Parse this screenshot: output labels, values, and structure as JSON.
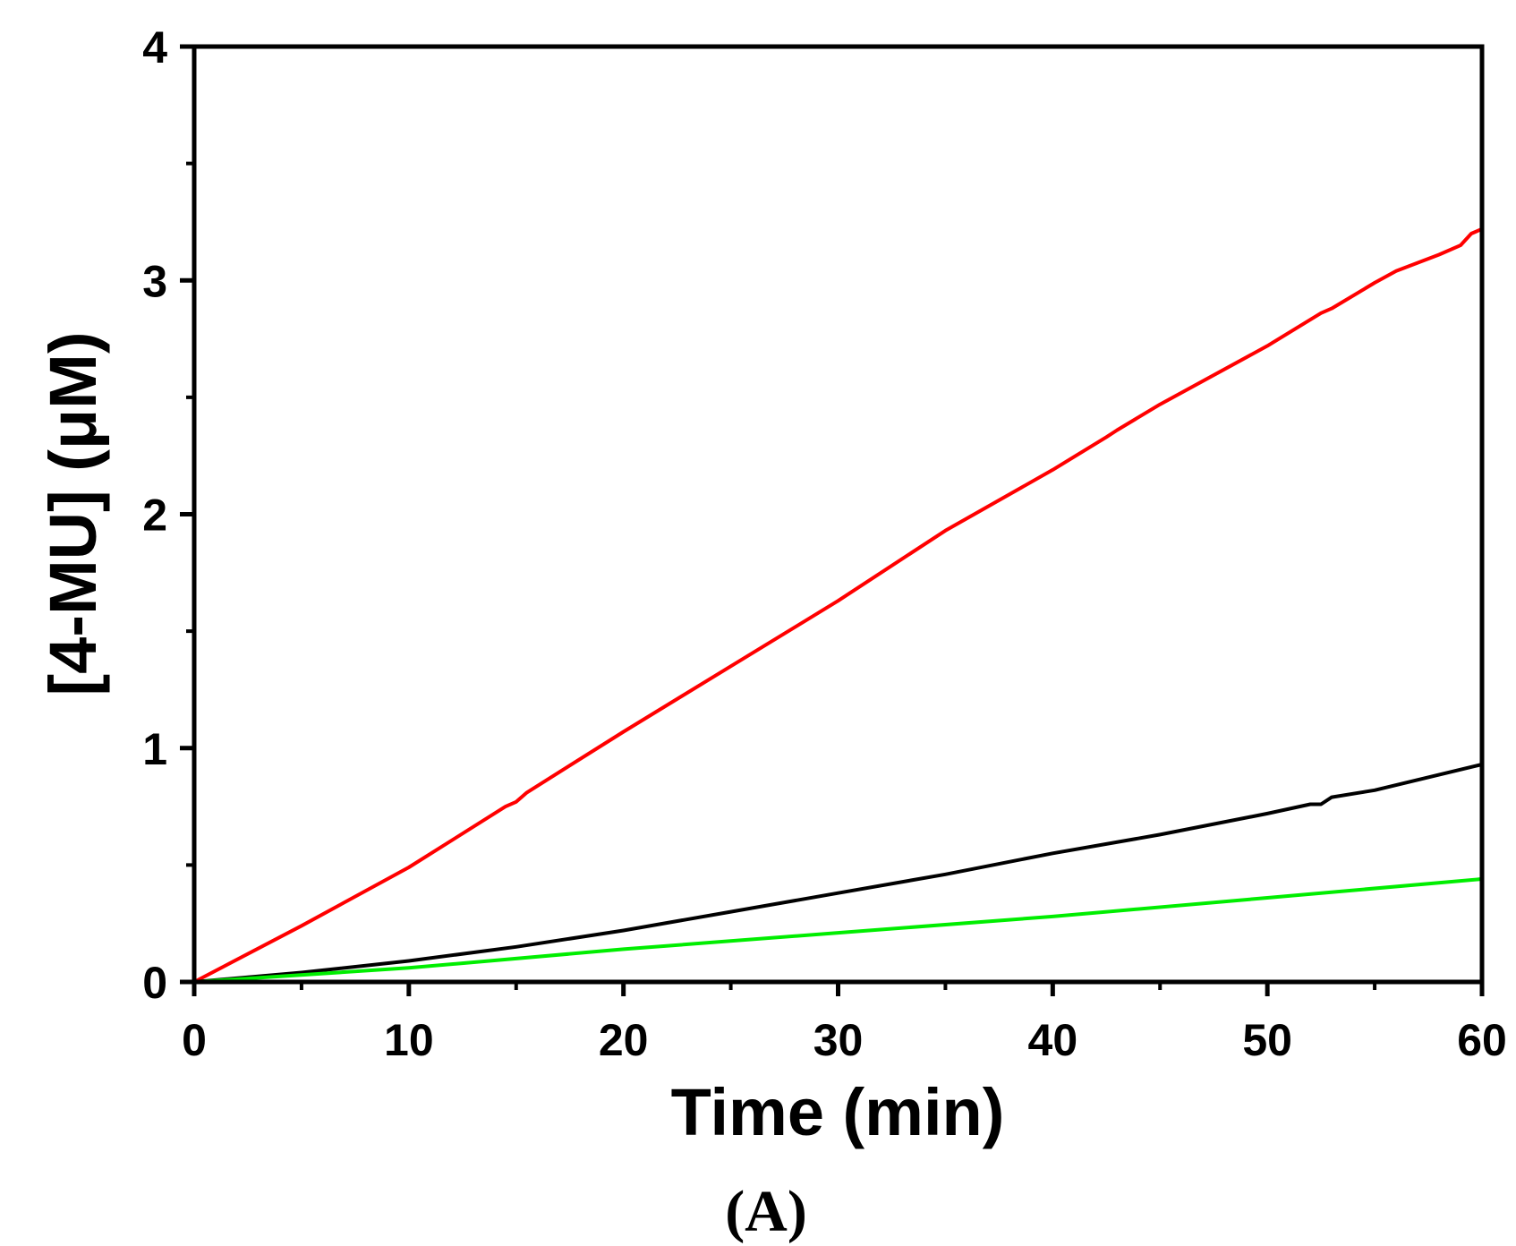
{
  "chart_data": {
    "type": "line",
    "title": "",
    "xlabel": "Time (min)",
    "ylabel": "[4-MU] (μM)",
    "panel_label": "(A)",
    "xlim": [
      0,
      60
    ],
    "ylim": [
      0,
      4
    ],
    "x_ticks": [
      0,
      10,
      20,
      30,
      40,
      50,
      60
    ],
    "y_ticks": [
      0,
      1,
      2,
      3,
      4
    ],
    "grid": false,
    "legend": "none",
    "series": [
      {
        "color": "#ff0000",
        "x": [
          0,
          5,
          10,
          14.5,
          15,
          15.5,
          20,
          25,
          30,
          30.5,
          35,
          40,
          42.5,
          43,
          45,
          50,
          52.5,
          53,
          55,
          56,
          58,
          59,
          59.5,
          60
        ],
        "y": [
          0,
          0.24,
          0.49,
          0.75,
          0.77,
          0.81,
          1.07,
          1.35,
          1.63,
          1.66,
          1.93,
          2.19,
          2.33,
          2.36,
          2.47,
          2.72,
          2.86,
          2.88,
          2.99,
          3.04,
          3.11,
          3.15,
          3.2,
          3.22
        ]
      },
      {
        "color": "#000000",
        "x": [
          0,
          5,
          10,
          15,
          20,
          25,
          30,
          35,
          40,
          45,
          50,
          52,
          52.5,
          53,
          55,
          60
        ],
        "y": [
          0,
          0.04,
          0.09,
          0.15,
          0.22,
          0.3,
          0.38,
          0.46,
          0.55,
          0.63,
          0.72,
          0.76,
          0.76,
          0.79,
          0.82,
          0.93
        ]
      },
      {
        "color": "#00ee00",
        "x": [
          0,
          10,
          20,
          30,
          40,
          50,
          60
        ],
        "y": [
          0,
          0.06,
          0.14,
          0.21,
          0.28,
          0.36,
          0.44
        ]
      }
    ]
  }
}
